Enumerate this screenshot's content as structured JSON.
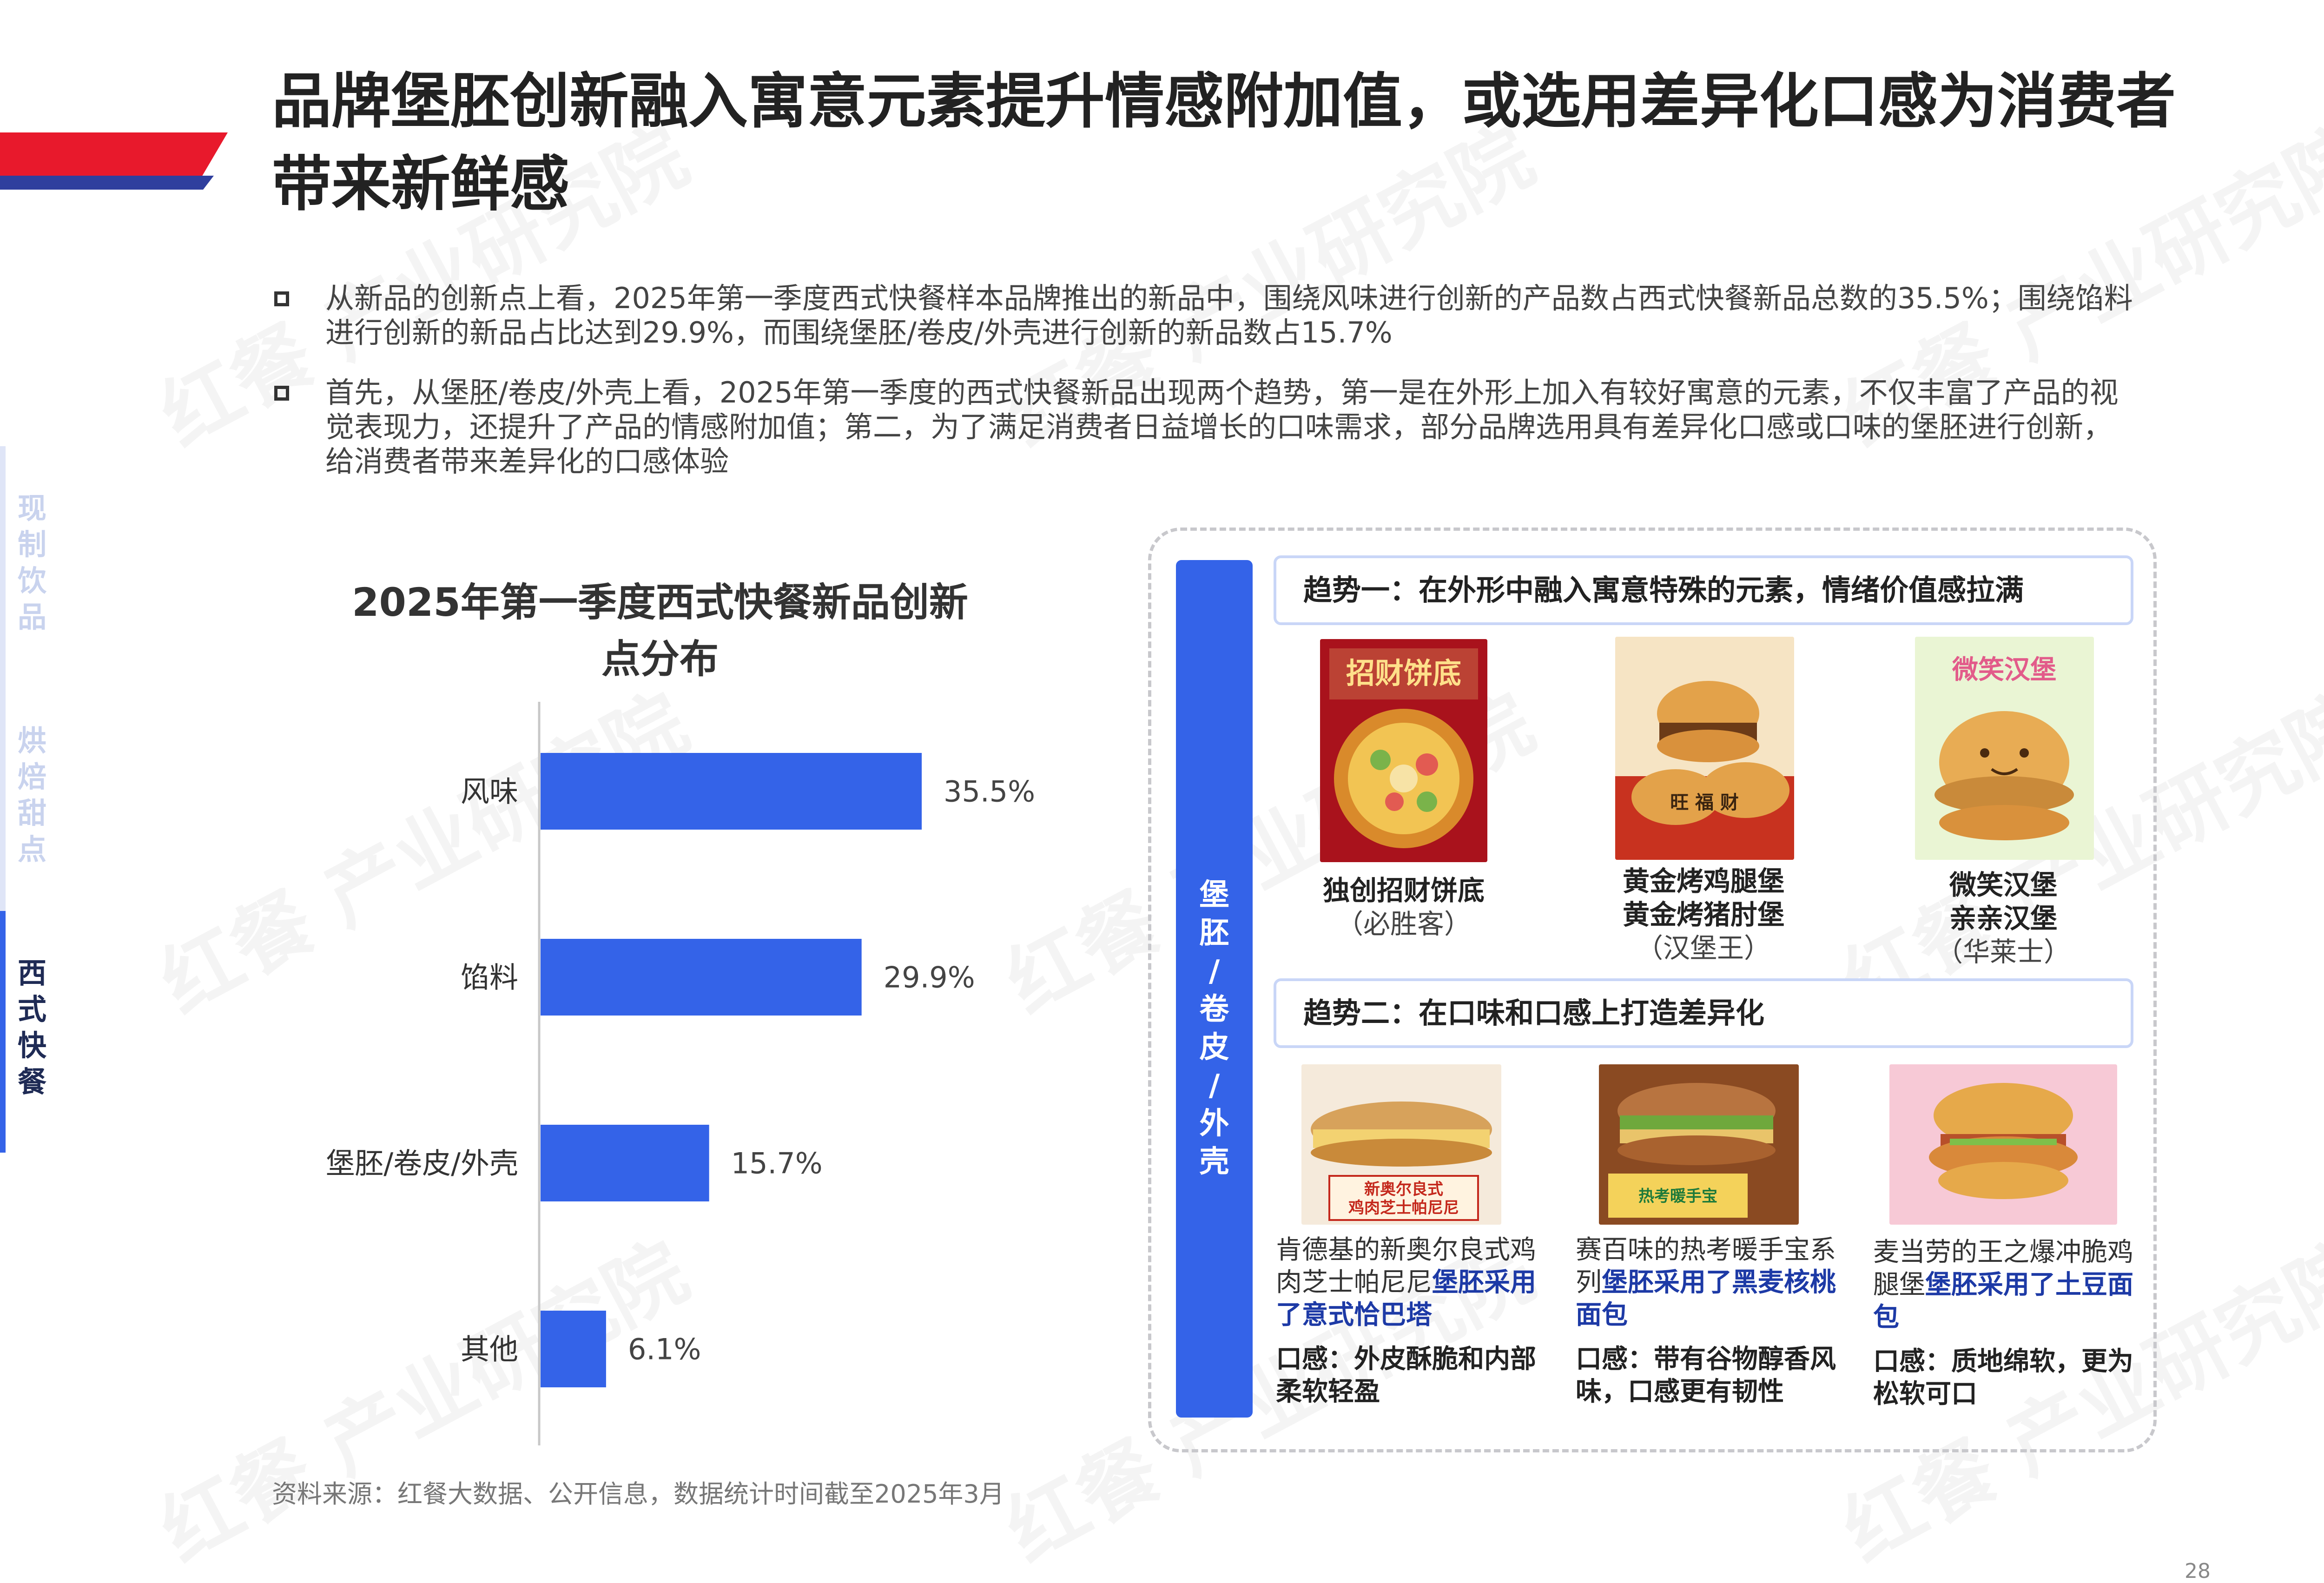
{
  "title": "品牌堡胚创新融入寓意元素提升情感附加值，或选用差异化口感为消费者带来新鲜感",
  "watermark": "红餐 产业研究院",
  "side_nav": [
    {
      "label": "现制饮品",
      "active": false
    },
    {
      "label": "烘焙甜点",
      "active": false
    },
    {
      "label": "西式快餐",
      "active": true
    }
  ],
  "bullets": [
    "从新品的创新点上看，2025年第一季度西式快餐样本品牌推出的新品中，围绕风味进行创新的产品数占西式快餐新品总数的35.5%；围绕馅料进行创新的新品占比达到29.9%，而围绕堡胚/卷皮/外壳进行创新的新品数占15.7%",
    "首先，从堡胚/卷皮/外壳上看，2025年第一季度的西式快餐新品出现两个趋势，第一是在外形上加入有较好寓意的元素，不仅丰富了产品的视觉表现力，还提升了产品的情感附加值；第二，为了满足消费者日益增长的口味需求，部分品牌选用具有差异化口感或口味的堡胚进行创新，给消费者带来差异化的口感体验"
  ],
  "chart_data": {
    "type": "bar",
    "orientation": "horizontal",
    "title": "2025年第一季度西式快餐新品创新点分布",
    "categories": [
      "风味",
      "馅料",
      "堡胚/卷皮/外壳",
      "其他"
    ],
    "values": [
      35.5,
      29.9,
      15.7,
      6.1
    ],
    "value_labels": [
      "35.5%",
      "29.9%",
      "15.7%",
      "6.1%"
    ],
    "unit": "%",
    "bar_color": "#3463e8",
    "grid": false,
    "xlim": [
      0,
      40
    ]
  },
  "source": "资料来源：红餐大数据、公开信息，数据统计时间截至2025年3月",
  "panel": {
    "category_label": "堡胚/卷皮/外壳",
    "trend1": {
      "title": "趋势一：在外形中融入寓意特殊的元素，情绪价值感拉满",
      "products": [
        {
          "name": "独创招财饼底",
          "brand": "（必胜客）",
          "image_text": "招财饼底"
        },
        {
          "name": "黄金烤鸡腿堡\n黄金烤猪肘堡",
          "brand": "（汉堡王）",
          "image_text": "旺 福 财"
        },
        {
          "name": "微笑汉堡\n亲亲汉堡",
          "brand": "（华莱士）",
          "image_text": "微笑汉堡"
        }
      ]
    },
    "trend2": {
      "title": "趋势二：在口味和口感上打造差异化",
      "products": [
        {
          "image_text": "新奥尔良式\n鸡肉芝士帕尼尼",
          "desc_plain": "肯德基的新奥尔良式鸡肉芝士帕尼尼",
          "desc_highlight": "堡胚采用了意式恰巴塔",
          "taste": "口感：外皮酥脆和内部柔软轻盈"
        },
        {
          "image_text": "热考暖手宝",
          "desc_plain": "赛百味的热考暖手宝系列",
          "desc_highlight": "堡胚采用了黑麦核桃面包",
          "taste": "口感：带有谷物醇香风味，口感更有韧性"
        },
        {
          "image_text": "",
          "desc_plain": "麦当劳的王之爆冲脆鸡腿堡",
          "desc_highlight": "堡胚采用了土豆面包",
          "taste": "口感：质地绵软，更为松软可口"
        }
      ]
    }
  },
  "page_number": "28"
}
